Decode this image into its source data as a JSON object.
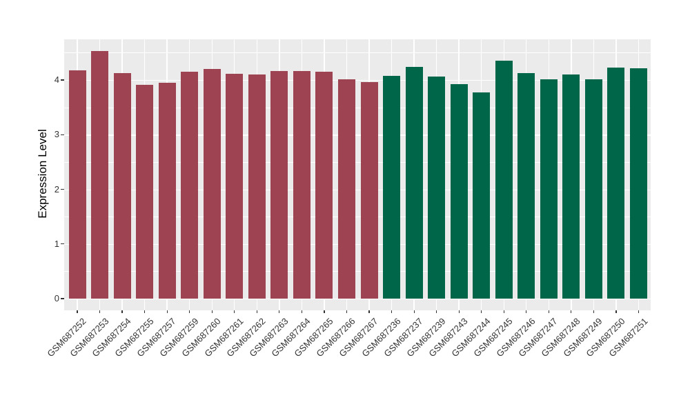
{
  "chart_data": {
    "type": "bar",
    "title": "",
    "xlabel": "",
    "ylabel": "Expression Level",
    "ylim": [
      0,
      4.74
    ],
    "yticks": [
      0,
      1,
      2,
      3,
      4
    ],
    "yticks_minor": [
      0.5,
      1.5,
      2.5,
      3.5,
      4.5
    ],
    "grid": "on",
    "legend": "none",
    "categories": [
      "GSM687252",
      "GSM687253",
      "GSM687254",
      "GSM687255",
      "GSM687257",
      "GSM687259",
      "GSM687260",
      "GSM687261",
      "GSM687262",
      "GSM687263",
      "GSM687264",
      "GSM687265",
      "GSM687266",
      "GSM687267",
      "GSM687236",
      "GSM687237",
      "GSM687239",
      "GSM687243",
      "GSM687244",
      "GSM687245",
      "GSM687246",
      "GSM687247",
      "GSM687248",
      "GSM687249",
      "GSM687250",
      "GSM687251"
    ],
    "values": [
      4.18,
      4.53,
      4.13,
      3.91,
      3.95,
      4.15,
      4.2,
      4.11,
      4.1,
      4.17,
      4.16,
      4.15,
      4.01,
      3.96,
      4.08,
      4.24,
      4.06,
      3.92,
      3.77,
      4.35,
      4.13,
      4.01,
      4.1,
      4.01,
      4.23,
      4.21
    ],
    "series": [
      {
        "name": "group-maroon",
        "color": "#9E4352",
        "categories": [
          "GSM687252",
          "GSM687253",
          "GSM687254",
          "GSM687255",
          "GSM687257",
          "GSM687259",
          "GSM687260",
          "GSM687261",
          "GSM687262",
          "GSM687263",
          "GSM687264",
          "GSM687265",
          "GSM687266",
          "GSM687267"
        ],
        "values": [
          4.18,
          4.53,
          4.13,
          3.91,
          3.95,
          4.15,
          4.2,
          4.11,
          4.1,
          4.17,
          4.16,
          4.15,
          4.01,
          3.96
        ]
      },
      {
        "name": "group-green",
        "color": "#006649",
        "categories": [
          "GSM687236",
          "GSM687237",
          "GSM687239",
          "GSM687243",
          "GSM687244",
          "GSM687245",
          "GSM687246",
          "GSM687247",
          "GSM687248",
          "GSM687249",
          "GSM687250",
          "GSM687251"
        ],
        "values": [
          4.08,
          4.24,
          4.06,
          3.92,
          3.77,
          4.35,
          4.13,
          4.01,
          4.1,
          4.01,
          4.23,
          4.21
        ]
      }
    ],
    "bar_group_index": [
      0,
      0,
      0,
      0,
      0,
      0,
      0,
      0,
      0,
      0,
      0,
      0,
      0,
      0,
      1,
      1,
      1,
      1,
      1,
      1,
      1,
      1,
      1,
      1,
      1,
      1
    ]
  },
  "colors": {
    "panel_bg": "#EBEBEB",
    "gridline": "#FFFFFF",
    "bar_maroon": "#9E4352",
    "bar_green": "#006649",
    "axis_text": "#333333",
    "axis_title": "#000000"
  }
}
